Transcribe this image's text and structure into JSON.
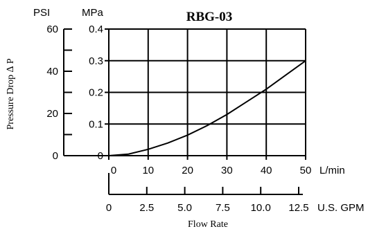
{
  "chart_data": {
    "type": "line",
    "title": "RBG-03",
    "xlabel": "Flow Rate",
    "ylabel": "Pressure Drop ∆ P",
    "axes": {
      "y_left_unit": "PSI",
      "y_right_unit": "MPa",
      "x_top_unit": "L/min",
      "x_bottom_unit": "U.S. GPM"
    },
    "ticks": {
      "psi": [
        "60",
        "40",
        "20",
        "0"
      ],
      "mpa": [
        "0.4",
        "0.3",
        "0.2",
        "0.1",
        "0"
      ],
      "lpm": [
        "0",
        "10",
        "20",
        "30",
        "40",
        "50"
      ],
      "gpm": [
        "0",
        "2.5",
        "5.0",
        "7.5",
        "10.0",
        "12.5"
      ]
    },
    "xlim": [
      0,
      50
    ],
    "ylim": [
      0,
      0.4
    ],
    "grid": true,
    "series": [
      {
        "x": [
          0,
          5,
          10,
          15,
          20,
          25,
          30,
          35,
          40,
          45,
          50
        ],
        "y": [
          0,
          0.005,
          0.02,
          0.04,
          0.065,
          0.095,
          0.13,
          0.17,
          0.21,
          0.255,
          0.3
        ]
      }
    ]
  }
}
